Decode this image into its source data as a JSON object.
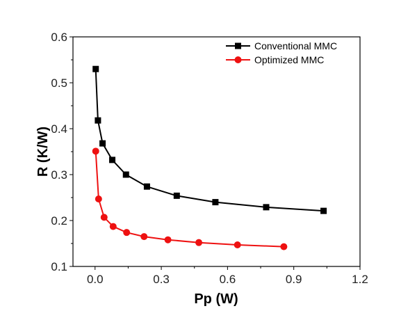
{
  "chart_data": {
    "type": "line",
    "xlabel": "Pp (W)",
    "ylabel": "R (K/W)",
    "xlim": [
      -0.1,
      1.2
    ],
    "ylim": [
      0.1,
      0.6
    ],
    "xticks": [
      0.0,
      0.3,
      0.6,
      0.9,
      1.2
    ],
    "xtick_labels": [
      "0.0",
      "0.3",
      "0.6",
      "0.9",
      "1.2"
    ],
    "yticks": [
      0.1,
      0.2,
      0.3,
      0.4,
      0.5,
      0.6
    ],
    "ytick_labels": [
      "0.1",
      "0.2",
      "0.3",
      "0.4",
      "0.5",
      "0.6"
    ],
    "grid": false,
    "legend_position": "top-right",
    "series": [
      {
        "name": "Conventional MMC",
        "color": "#000000",
        "marker": "square",
        "x": [
          0.003,
          0.013,
          0.034,
          0.078,
          0.14,
          0.235,
          0.37,
          0.545,
          0.775,
          1.035
        ],
        "y": [
          0.53,
          0.418,
          0.368,
          0.332,
          0.3,
          0.274,
          0.254,
          0.24,
          0.229,
          0.221
        ]
      },
      {
        "name": "Optimized MMC",
        "color": "#ee1111",
        "marker": "circle",
        "x": [
          0.003,
          0.016,
          0.041,
          0.082,
          0.143,
          0.222,
          0.33,
          0.47,
          0.645,
          0.855
        ],
        "y": [
          0.351,
          0.247,
          0.207,
          0.187,
          0.174,
          0.165,
          0.158,
          0.152,
          0.147,
          0.143
        ]
      }
    ]
  }
}
